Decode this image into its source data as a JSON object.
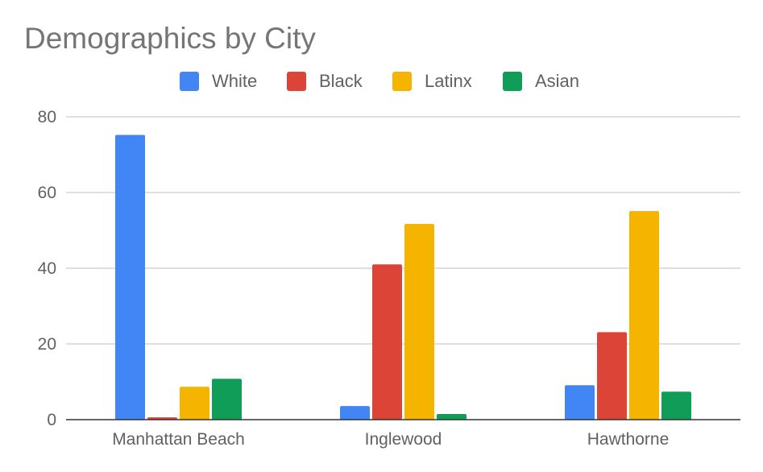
{
  "chart_data": {
    "type": "bar",
    "title": "Demographics by City",
    "categories": [
      "Manhattan Beach",
      "Inglewood",
      "Hawthorne"
    ],
    "series": [
      {
        "name": "White",
        "color": "#4285f4",
        "values": [
          75.2,
          3.6,
          9.1
        ]
      },
      {
        "name": "Black",
        "color": "#db4437",
        "values": [
          0.6,
          41.0,
          23.1
        ]
      },
      {
        "name": "Latinx",
        "color": "#f4b400",
        "values": [
          8.7,
          51.7,
          55.1
        ]
      },
      {
        "name": "Asian",
        "color": "#0f9d58",
        "values": [
          10.8,
          1.5,
          7.4
        ]
      }
    ],
    "ylim": [
      0,
      80
    ],
    "yticks": [
      0,
      20,
      40,
      60,
      80
    ],
    "grid": true,
    "legend_position": "top-center",
    "gridline_color": "#cccccc",
    "axis_color": "#333333"
  }
}
